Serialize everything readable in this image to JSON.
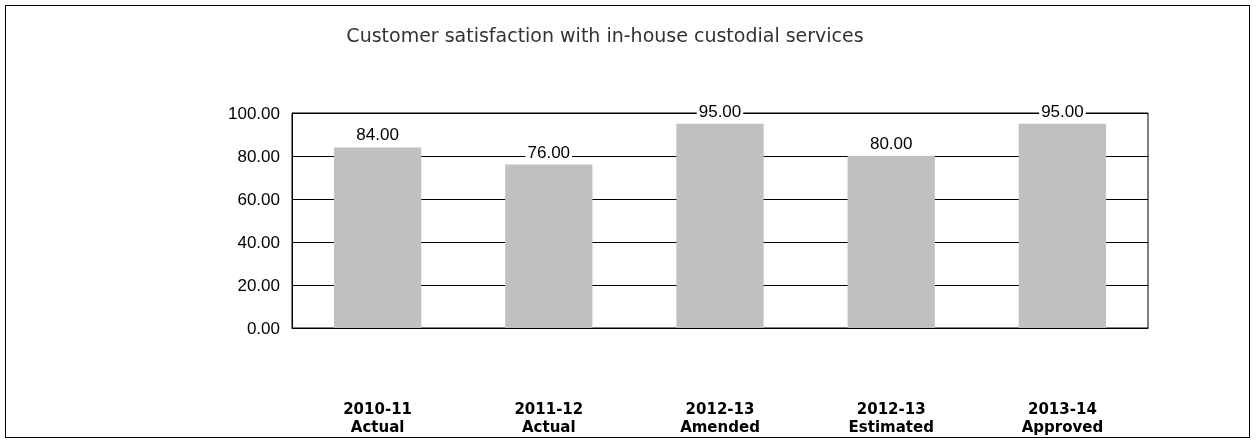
{
  "chart_data": {
    "type": "bar",
    "title": "Customer satisfaction with in-house custodial services",
    "categories": [
      "2010-11\nActual",
      "2011-12\nActual",
      "2012-13\nAmended",
      "2012-13\nEstimated",
      "2013-14\nApproved"
    ],
    "values": [
      84,
      76,
      95,
      80,
      95
    ],
    "value_labels": [
      "84.00",
      "76.00",
      "95.00",
      "80.00",
      "95.00"
    ],
    "color": "#c0c0c0",
    "ylim": [
      0,
      100
    ],
    "yticks": [
      {
        "value": 0,
        "label": "0.00"
      },
      {
        "value": 20,
        "label": "20.00"
      },
      {
        "value": 40,
        "label": "40.00"
      },
      {
        "value": 60,
        "label": "60.00"
      },
      {
        "value": 80,
        "label": "80.00"
      },
      {
        "value": 100,
        "label": "100.00"
      }
    ],
    "grid": "y"
  }
}
